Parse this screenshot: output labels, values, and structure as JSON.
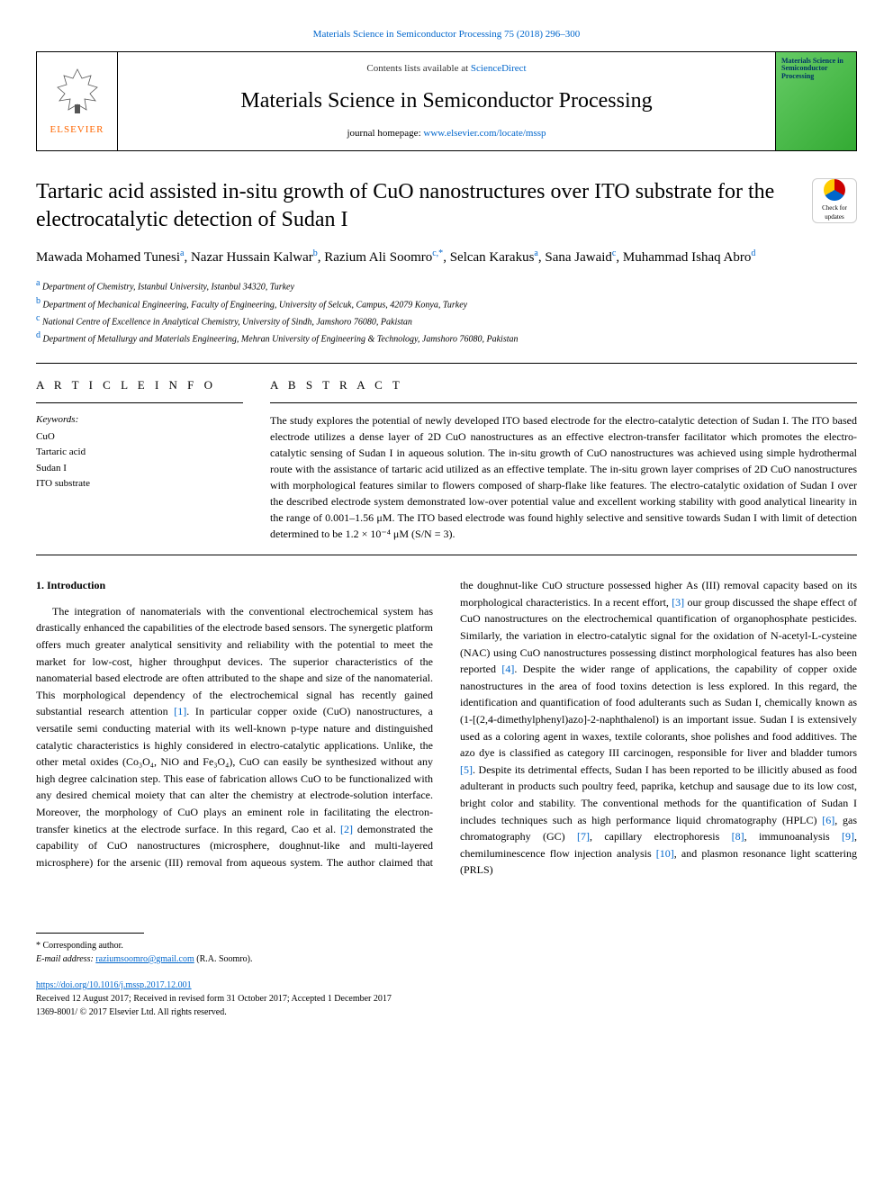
{
  "topref": "Materials Science in Semiconductor Processing 75 (2018) 296–300",
  "header": {
    "elsevier": "ELSEVIER",
    "contents_prefix": "Contents lists available at ",
    "contents_link": "ScienceDirect",
    "journal_name": "Materials Science in Semiconductor Processing",
    "homepage_prefix": "journal homepage: ",
    "homepage_link": "www.elsevier.com/locate/mssp",
    "cover_text": "Materials Science in Semiconductor Processing",
    "cover_bg_color": "#66cc66"
  },
  "article": {
    "title": "Tartaric acid assisted in-situ growth of CuO nanostructures over ITO substrate for the electrocatalytic detection of Sudan I",
    "check_updates_label": "Check for updates",
    "authors_html": "Mawada Mohamed Tunesi<sup class='sup'>a</sup>, Nazar Hussain Kalwar<sup class='sup'>b</sup>, Razium Ali Soomro<sup class='sup'>c,*</sup>, Selcan Karakus<sup class='sup'>a</sup>, Sana Jawaid<sup class='sup'>c</sup>, Muhammad Ishaq Abro<sup class='sup'>d</sup>",
    "affiliations": [
      {
        "sup": "a",
        "text": "Department of Chemistry, Istanbul University, Istanbul 34320, Turkey"
      },
      {
        "sup": "b",
        "text": "Department of Mechanical Engineering, Faculty of Engineering, University of Selcuk, Campus, 42079 Konya, Turkey"
      },
      {
        "sup": "c",
        "text": "National Centre of Excellence in Analytical Chemistry, University of Sindh, Jamshoro 76080, Pakistan"
      },
      {
        "sup": "d",
        "text": "Department of Metallurgy and Materials Engineering, Mehran University of Engineering & Technology, Jamshoro 76080, Pakistan"
      }
    ]
  },
  "article_info": {
    "heading": "A R T I C L E  I N F O",
    "keywords_label": "Keywords:",
    "keywords": [
      "CuO",
      "Tartaric acid",
      "Sudan I",
      "ITO substrate"
    ]
  },
  "abstract": {
    "heading": "A B S T R A C T",
    "text": "The study explores the potential of newly developed ITO based electrode for the electro-catalytic detection of Sudan I. The ITO based electrode utilizes a dense layer of 2D CuO nanostructures as an effective electron-transfer facilitator which promotes the electro-catalytic sensing of Sudan I in aqueous solution. The in-situ growth of CuO nanostructures was achieved using simple hydrothermal route with the assistance of tartaric acid utilized as an effective template. The in-situ grown layer comprises of 2D CuO nanostructures with morphological features similar to flowers composed of sharp-flake like features. The electro-catalytic oxidation of Sudan I over the described electrode system demonstrated low-over potential value and excellent working stability with good analytical linearity in the range of 0.001–1.56 μM. The ITO based electrode was found highly selective and sensitive towards Sudan I with limit of detection determined to be 1.2 × 10⁻⁴ μM (S/N = 3)."
  },
  "intro": {
    "heading": "1. Introduction",
    "body_html": "The integration of nanomaterials with the conventional electrochemical system has drastically enhanced the capabilities of the electrode based sensors. The synergetic platform offers much greater analytical sensitivity and reliability with the potential to meet the market for low-cost, higher throughput devices. The superior characteristics of the nanomaterial based electrode are often attributed to the shape and size of the nanomaterial. This morphological dependency of the electrochemical signal has recently gained substantial research attention <span class='ref-link'>[1]</span>. In particular copper oxide (CuO) nanostructures, a versatile semi conducting material with its well-known p-type nature and distinguished catalytic characteristics is highly considered in electro-catalytic applications. Unlike, the other metal oxides (Co₃O₄, NiO and Fe₃O₄), CuO can easily be synthesized without any high degree calcination step. This ease of fabrication allows CuO to be functionalized with any desired chemical moiety that can alter the chemistry at electrode-solution interface. Moreover, the morphology of CuO plays an eminent role in facilitating the electron-transfer kinetics at the electrode surface. In this regard, Cao et al. <span class='ref-link'>[2]</span> demonstrated the capability of CuO nanostructures (microsphere, doughnut-like and multi-layered microsphere) for the arsenic (III) removal from aqueous system. The author claimed that the doughnut-like CuO structure possessed higher As (III) removal capacity based on its morphological characteristics. In a recent effort, <span class='ref-link'>[3]</span> our group discussed the shape effect of CuO nanostructures on the electrochemical quantification of organophosphate pesticides. Similarly, the variation in electro-catalytic signal for the oxidation of N-acetyl-L-cysteine (NAC) using CuO nanostructures possessing distinct morphological features has also been reported <span class='ref-link'>[4]</span>. Despite the wider range of applications, the capability of copper oxide nanostructures in the area of food toxins detection is less explored. In this regard, the identification and quantification of food adulterants such as Sudan I, chemically known as (1-[(2,4-dimethylphenyl)azo]-2-naphthalenol) is an important issue. Sudan I is extensively used as a coloring agent in waxes, textile colorants, shoe polishes and food additives. The azo dye is classified as category III carcinogen, responsible for liver and bladder tumors <span class='ref-link'>[5]</span>. Despite its detrimental effects, Sudan I has been reported to be illicitly abused as food adulterant in products such poultry feed, paprika, ketchup and sausage due to its low cost, bright color and stability. The conventional methods for the quantification of Sudan I includes techniques such as high performance liquid chromatography (HPLC) <span class='ref-link'>[6]</span>, gas chromatography (GC) <span class='ref-link'>[7]</span>, capillary electrophoresis <span class='ref-link'>[8]</span>, immunoanalysis <span class='ref-link'>[9]</span>, chemiluminescence flow injection analysis <span class='ref-link'>[10]</span>, and plasmon resonance light scattering (PRLS)"
  },
  "footer": {
    "corr_author": "* Corresponding author.",
    "email_label": "E-mail address: ",
    "email": "raziumsoomro@gmail.com",
    "email_suffix": " (R.A. Soomro).",
    "doi": "https://doi.org/10.1016/j.mssp.2017.12.001",
    "received": "Received 12 August 2017; Received in revised form 31 October 2017; Accepted 1 December 2017",
    "issn": "1369-8001/ © 2017 Elsevier Ltd. All rights reserved."
  },
  "colors": {
    "link": "#0066cc",
    "elsevier_orange": "#ff6600",
    "text": "#000000",
    "bg": "#ffffff"
  }
}
